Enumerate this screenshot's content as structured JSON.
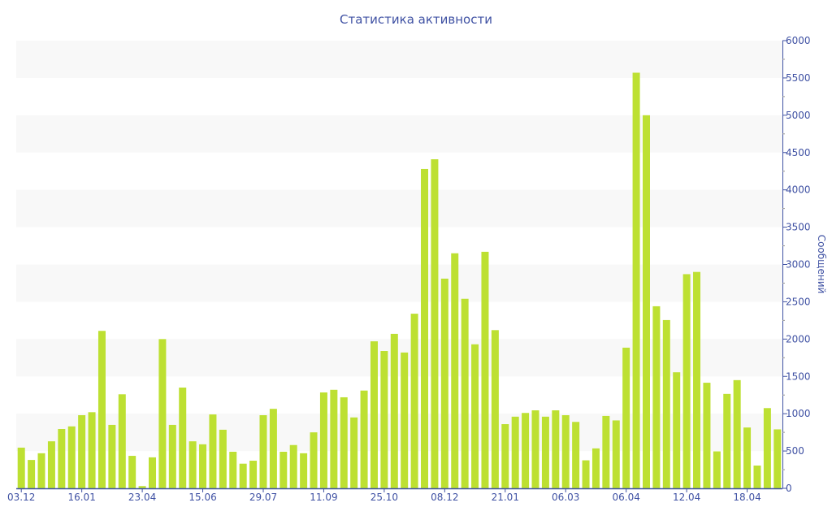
{
  "chart_data": {
    "type": "bar",
    "title": "Статистика активности",
    "xlabel": "",
    "ylabel": "Сообщений",
    "ylim": [
      0,
      6000
    ],
    "yticks": [
      0,
      500,
      1000,
      1500,
      2000,
      2500,
      3000,
      3500,
      4000,
      4500,
      5000,
      5500,
      6000
    ],
    "y_axis_side": "right",
    "grid": "alternating horizontal bands",
    "bar_color": "#bde032",
    "axis_color": "#3f51a3",
    "band_color": "#f8f8f8",
    "xtick_labels": [
      {
        "index": 0,
        "label": "03.12"
      },
      {
        "index": 6,
        "label": "16.01"
      },
      {
        "index": 12,
        "label": "23.04"
      },
      {
        "index": 18,
        "label": "15.06"
      },
      {
        "index": 24,
        "label": "29.07"
      },
      {
        "index": 30,
        "label": "11.09"
      },
      {
        "index": 36,
        "label": "25.10"
      },
      {
        "index": 42,
        "label": "08.12"
      },
      {
        "index": 48,
        "label": "21.01"
      },
      {
        "index": 54,
        "label": "06.03"
      },
      {
        "index": 60,
        "label": "06.04"
      },
      {
        "index": 66,
        "label": "12.04"
      },
      {
        "index": 72,
        "label": "18.04"
      }
    ],
    "values": [
      545,
      380,
      470,
      630,
      795,
      830,
      980,
      1020,
      2110,
      850,
      1260,
      435,
      30,
      415,
      2000,
      850,
      1350,
      630,
      590,
      990,
      785,
      490,
      330,
      370,
      980,
      1065,
      490,
      580,
      470,
      750,
      1285,
      1320,
      1220,
      950,
      1310,
      1970,
      1840,
      2070,
      1820,
      2340,
      4280,
      4410,
      2810,
      3150,
      2540,
      1930,
      3170,
      2120,
      860,
      960,
      1010,
      1045,
      960,
      1045,
      980,
      890,
      375,
      535,
      970,
      910,
      1885,
      5570,
      5000,
      2440,
      2255,
      1555,
      2870,
      2900,
      1415,
      495,
      1265,
      1450,
      815,
      305,
      1075,
      790
    ]
  }
}
